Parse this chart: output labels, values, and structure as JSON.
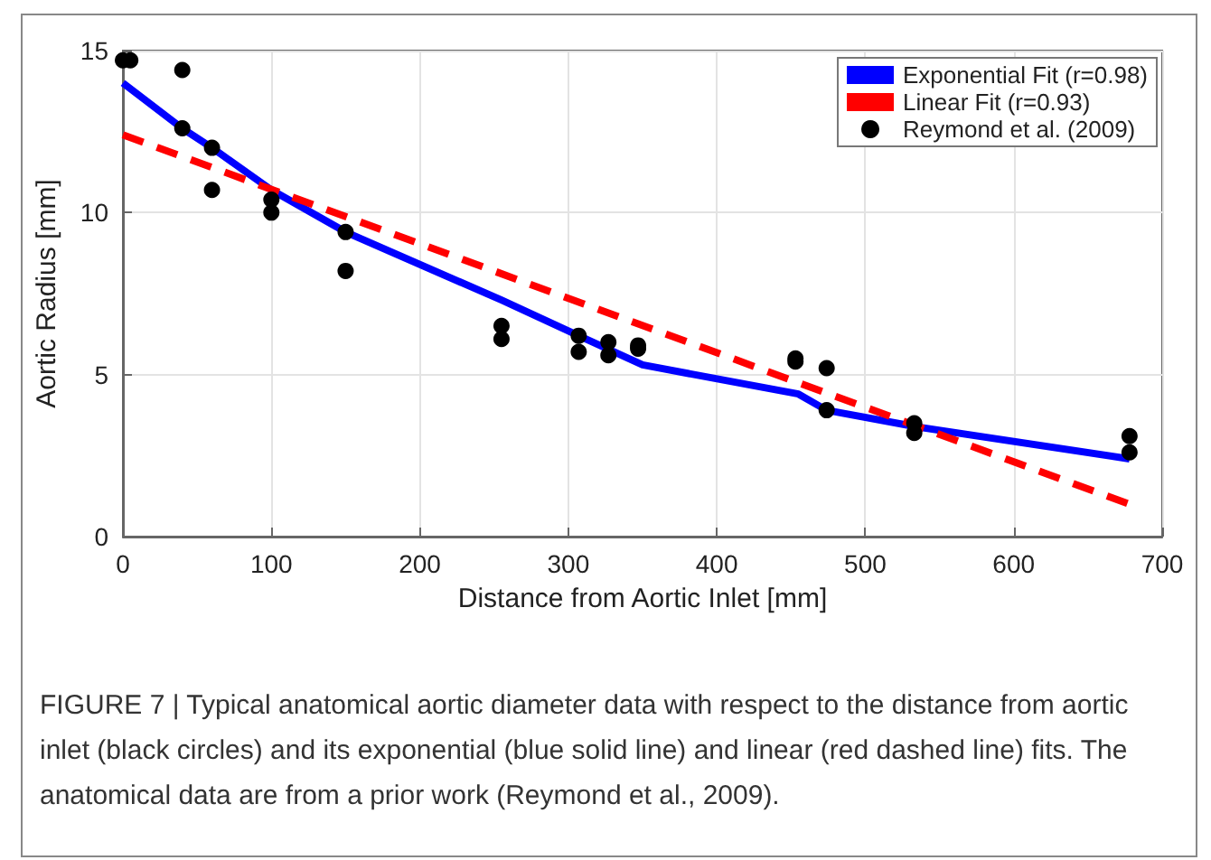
{
  "chart_data": {
    "type": "scatter",
    "xlabel": "Distance from Aortic Inlet [mm]",
    "ylabel": "Aortic Radius [mm]",
    "xlim": [
      0,
      700
    ],
    "xticks": [
      0,
      100,
      200,
      300,
      400,
      500,
      600,
      700
    ],
    "ylim": [
      0,
      15
    ],
    "yticks": [
      0,
      5,
      10,
      15
    ],
    "grid": true,
    "legend": "top right",
    "marker": "circle",
    "series": [
      {
        "name": "Exponential Fit (r=0.98)",
        "type": "line",
        "color": "#0000ff",
        "line_style": "solid",
        "marker": "none",
        "x": [
          0,
          40,
          60,
          100,
          150,
          255,
          307,
          350,
          455,
          474,
          533,
          678
        ],
        "values": [
          14.0,
          12.6,
          12.0,
          10.7,
          9.4,
          7.3,
          6.2,
          5.3,
          4.4,
          3.9,
          3.4,
          2.4
        ]
      },
      {
        "name": "Linear Fit (r=0.93)",
        "type": "line",
        "color": "#ff0000",
        "line_style": "dashed",
        "marker": "none",
        "x": [
          0,
          678
        ],
        "values": [
          12.4,
          1.0
        ]
      },
      {
        "name": "Reymond et al. (2009)",
        "color": "#000000",
        "x": [
          0,
          5,
          40,
          40,
          60,
          60,
          100,
          100,
          150,
          150,
          255,
          255,
          307,
          307,
          327,
          327,
          347,
          347,
          453,
          453,
          474,
          474,
          533,
          533,
          678,
          678
        ],
        "values": [
          14.7,
          14.7,
          14.4,
          12.6,
          12.0,
          10.7,
          10.4,
          10.0,
          9.4,
          8.2,
          6.5,
          6.1,
          6.2,
          5.7,
          6.0,
          5.6,
          5.9,
          5.8,
          5.5,
          5.4,
          5.2,
          3.9,
          3.5,
          3.2,
          3.1,
          2.6
        ]
      }
    ],
    "annotations": [
      "FIGURE 7 | Typical anatomical aortic diameter data with respect to the distance from aortic inlet (black circles) and its exponential (blue solid line) and linear (red dashed line) fits. The anatomical data are from a prior work (Reymond et al., 2009)."
    ]
  }
}
